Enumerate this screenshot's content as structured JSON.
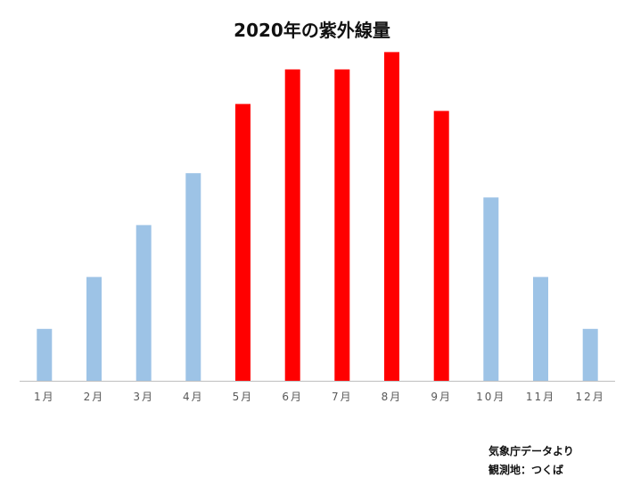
{
  "chart_data": {
    "type": "bar",
    "title": "2020年の紫外線量",
    "categories": [
      "1月",
      "2月",
      "3月",
      "4月",
      "5月",
      "6月",
      "7月",
      "8月",
      "9月",
      "10月",
      "11月",
      "12月"
    ],
    "values": [
      1.5,
      3.0,
      4.5,
      6.0,
      8.0,
      9.0,
      9.0,
      9.5,
      7.8,
      5.3,
      3.0,
      1.5
    ],
    "highlight": [
      false,
      false,
      false,
      false,
      true,
      true,
      true,
      true,
      true,
      false,
      false,
      false
    ],
    "ylim": [
      0,
      10
    ],
    "grid": false,
    "legend": "none",
    "colors": {
      "normal": "#9DC3E6",
      "highlight": "#FF0000",
      "axis": "#BFBFBF",
      "tick_text": "#595959"
    }
  },
  "source": {
    "line1": "気象庁データより",
    "line2": "観測地：つくば"
  }
}
